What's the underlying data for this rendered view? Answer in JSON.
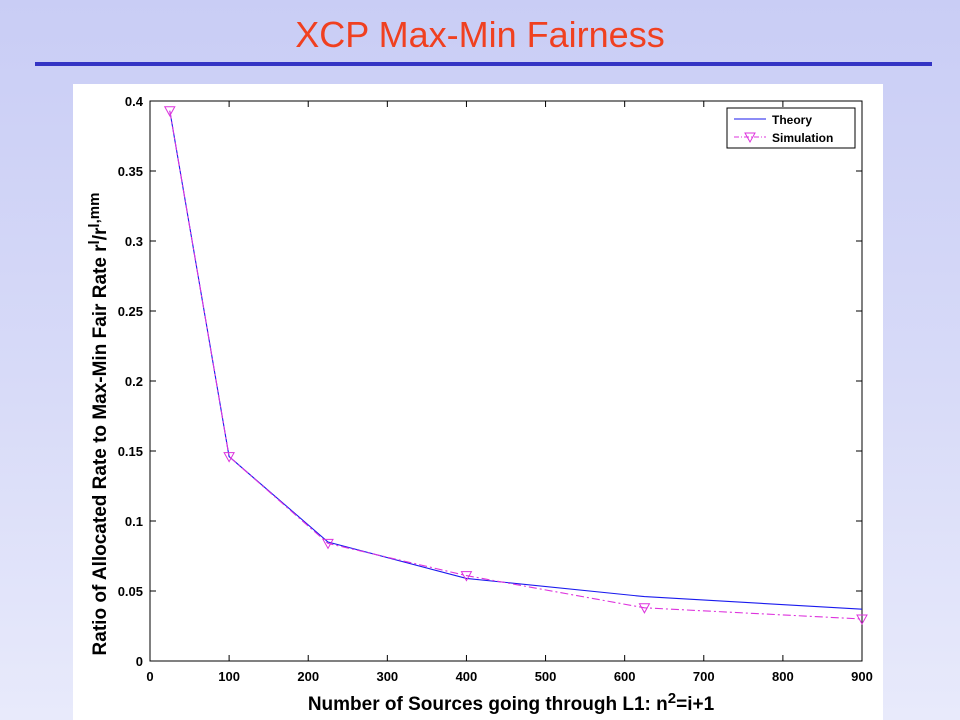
{
  "slide": {
    "title": "XCP Max-Min  Fairness"
  },
  "chart_data": {
    "type": "line",
    "xlabel": "Number of Sources going through L1: n",
    "xlabel_sup": "2",
    "xlabel_tail": "=i+1",
    "ylabel": "Ratio of Allocated Rate to Max-Min Fair Rate r",
    "ylabel_sup": "l",
    "ylabel_mid": "/r",
    "ylabel_sup2": "l,mm",
    "xlim": [
      0,
      900
    ],
    "ylim": [
      0,
      0.4
    ],
    "xticks": [
      "0",
      "100",
      "200",
      "300",
      "400",
      "500",
      "600",
      "700",
      "800",
      "900"
    ],
    "yticks": [
      "0",
      "0.05",
      "0.1",
      "0.15",
      "0.2",
      "0.25",
      "0.3",
      "0.35",
      "0.4"
    ],
    "grid": false,
    "legend_position": "top-right",
    "series": [
      {
        "name": "Theory",
        "color": "#1a1aee",
        "style": "solid",
        "x": [
          25,
          100,
          225,
          400,
          625,
          900
        ],
        "y": [
          0.393,
          0.146,
          0.085,
          0.059,
          0.046,
          0.037
        ]
      },
      {
        "name": "Simulation",
        "color": "#dd33dd",
        "style": "dash-dot",
        "marker": "triangle-down",
        "x": [
          25,
          100,
          225,
          400,
          625,
          900
        ],
        "y": [
          0.393,
          0.146,
          0.084,
          0.061,
          0.038,
          0.03
        ]
      }
    ]
  }
}
